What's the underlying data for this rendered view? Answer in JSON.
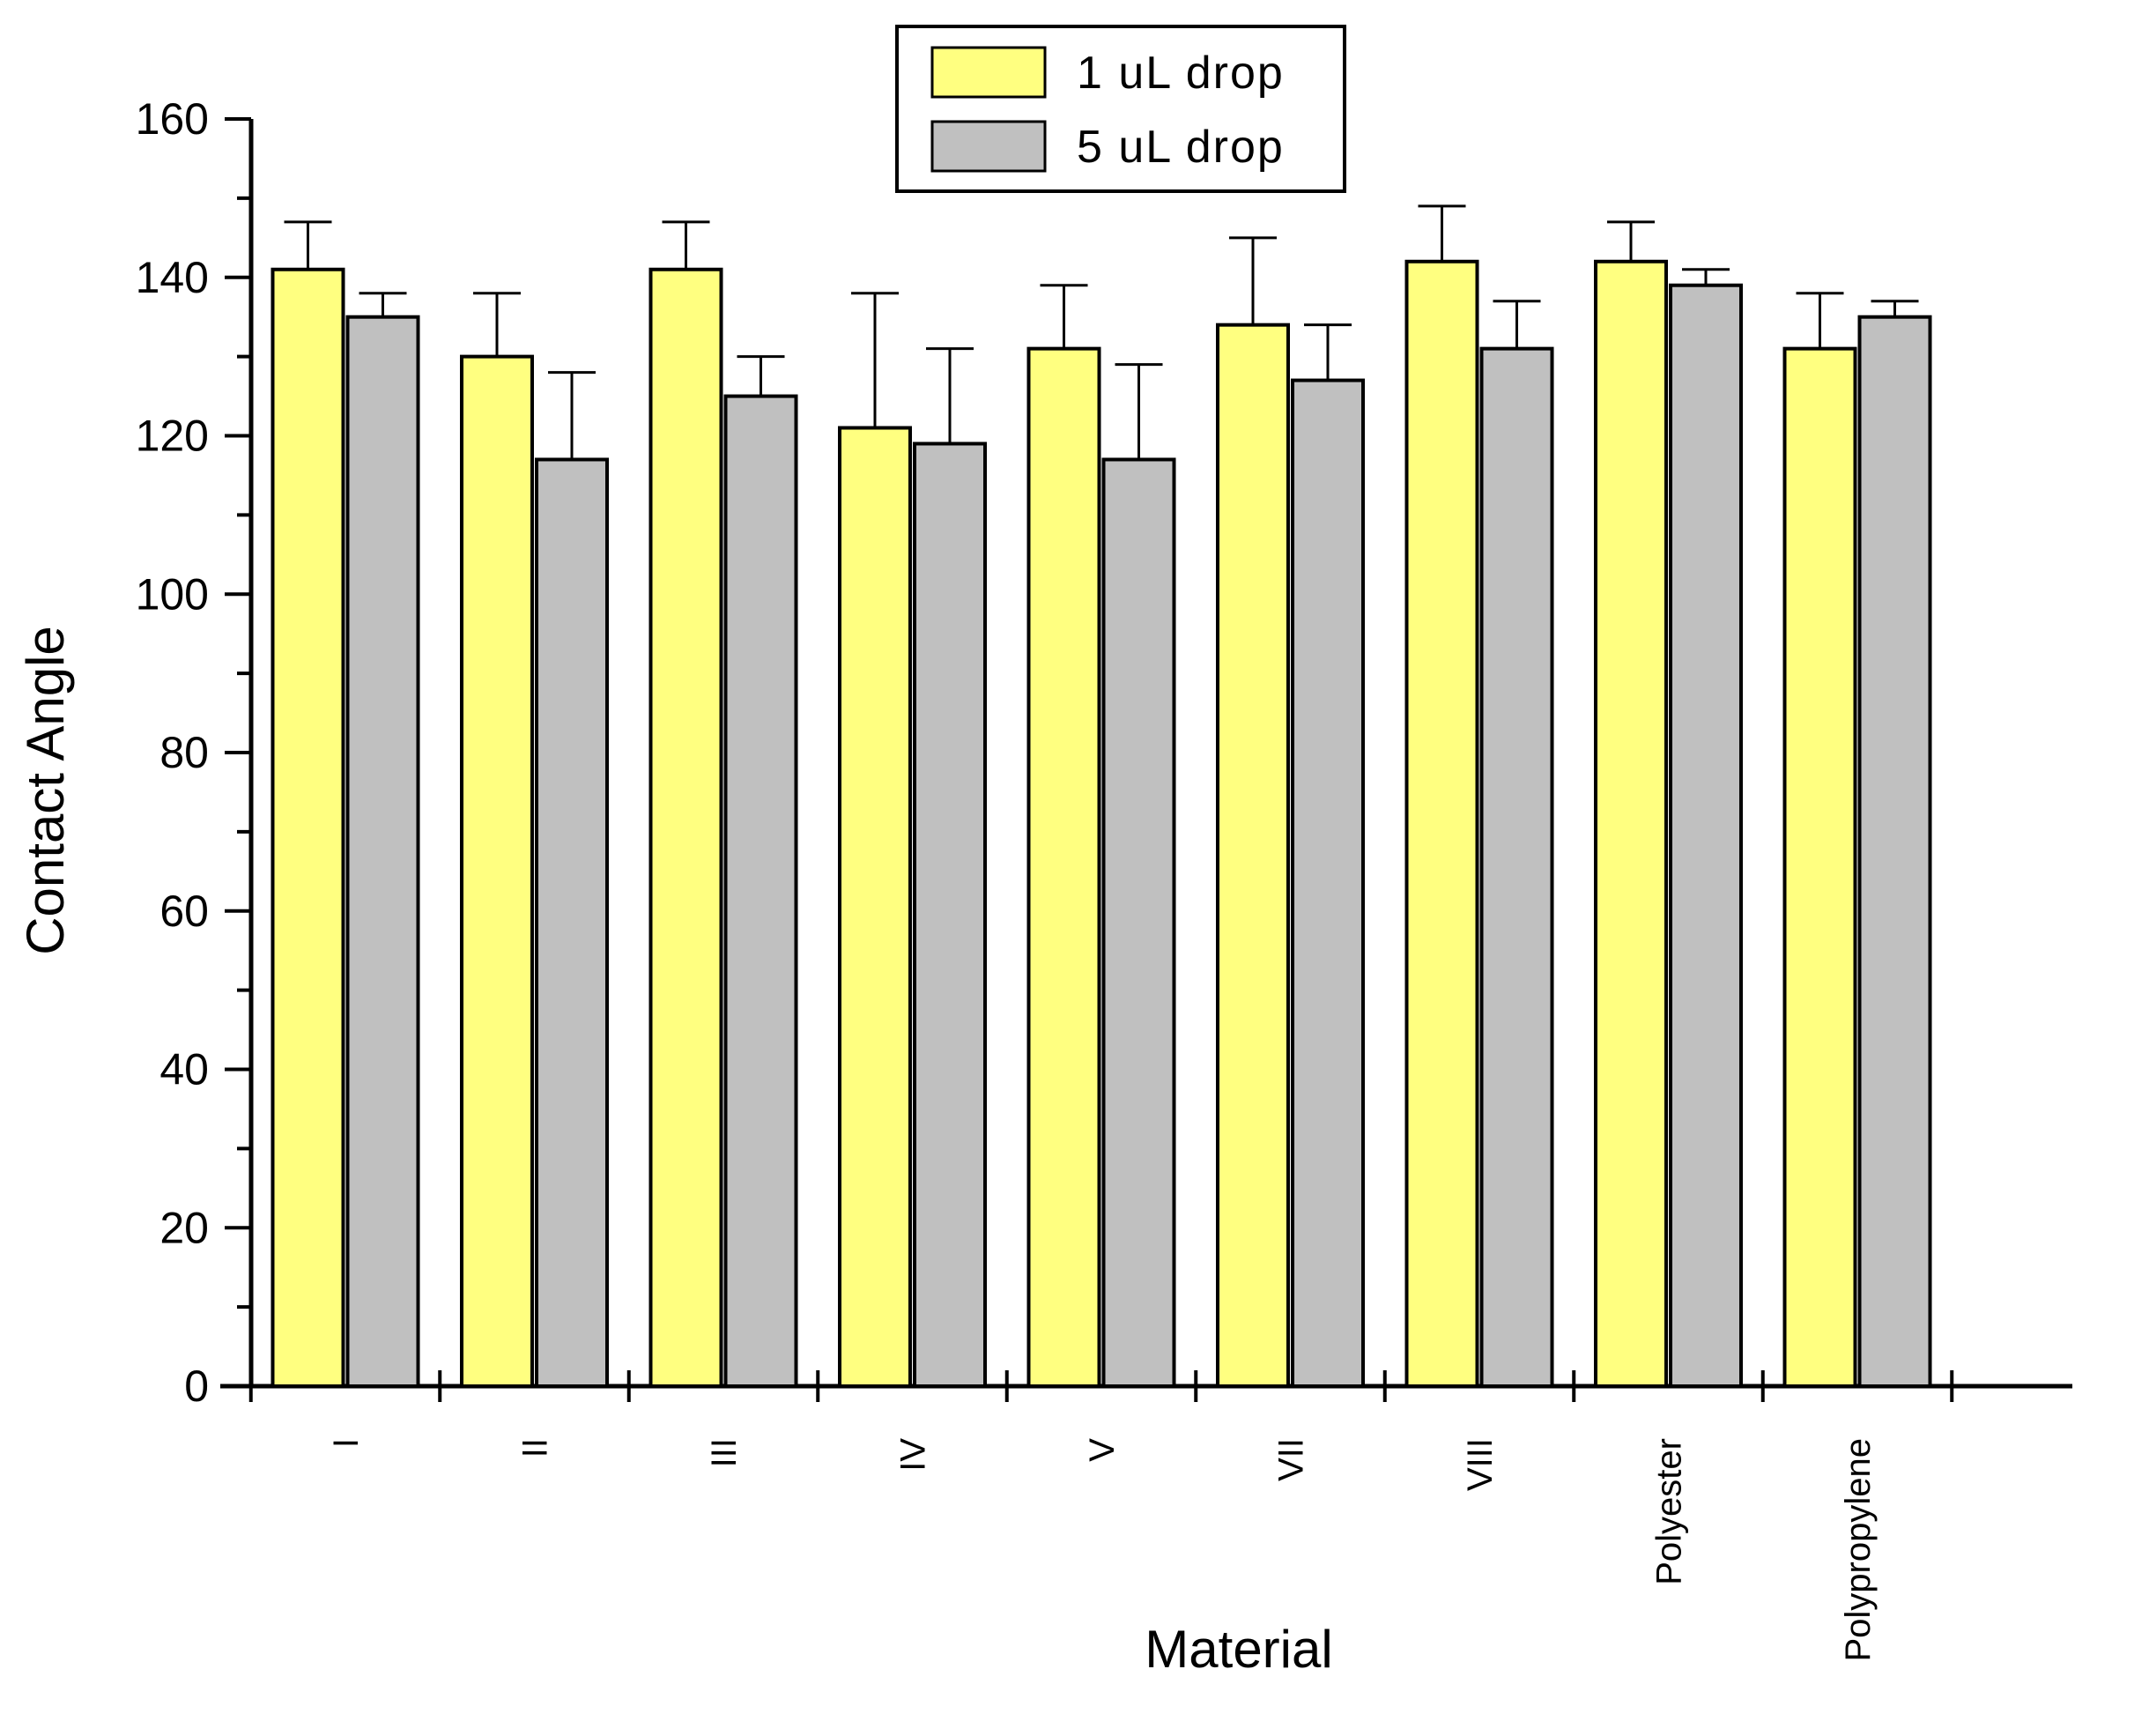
{
  "chart_data": {
    "type": "bar",
    "xlabel": "Material",
    "ylabel": "Contact Angle",
    "ylim": [
      0,
      160
    ],
    "yticks": [
      0,
      20,
      40,
      60,
      80,
      100,
      120,
      140,
      160
    ],
    "grid": false,
    "legend_position": "top-center",
    "categories": [
      "I",
      "II",
      "III",
      "IV",
      "V",
      "VII",
      "VIII",
      "Polyester",
      "Polypropylene"
    ],
    "series": [
      {
        "name": "1 uL drop",
        "color": "#FFFF80",
        "values": [
          141,
          130,
          141,
          121,
          131,
          134,
          142,
          142,
          131
        ],
        "errors": [
          6,
          8,
          6,
          17,
          8,
          11,
          7,
          5,
          7
        ]
      },
      {
        "name": "5 uL drop",
        "color": "#C0C0C0",
        "values": [
          135,
          117,
          125,
          119,
          117,
          127,
          131,
          139,
          135
        ],
        "errors": [
          3,
          11,
          5,
          12,
          12,
          7,
          6,
          2,
          2
        ]
      }
    ]
  }
}
